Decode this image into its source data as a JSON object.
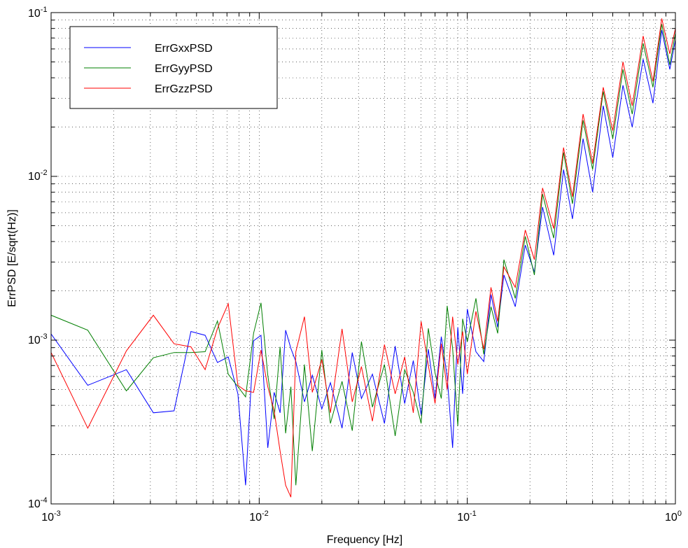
{
  "chart_data": {
    "type": "line",
    "title": "",
    "xlabel": "Frequency [Hz]",
    "ylabel": "ErrPSD [E/sqrt(Hz)]",
    "xscale": "log",
    "yscale": "log",
    "xlim": [
      0.001,
      1
    ],
    "ylim": [
      0.0001,
      0.1
    ],
    "grid": true,
    "legend_position": "top-left",
    "x_ticks": [
      {
        "base": "10",
        "exp": "-3",
        "value": 0.001
      },
      {
        "base": "10",
        "exp": "-2",
        "value": 0.01
      },
      {
        "base": "10",
        "exp": "-1",
        "value": 0.1
      },
      {
        "base": "10",
        "exp": "0",
        "value": 1
      }
    ],
    "y_ticks": [
      {
        "base": "10",
        "exp": "-4",
        "value": 0.0001
      },
      {
        "base": "10",
        "exp": "-3",
        "value": 0.001
      },
      {
        "base": "10",
        "exp": "-2",
        "value": 0.01
      },
      {
        "base": "10",
        "exp": "-1",
        "value": 0.1
      }
    ],
    "series": [
      {
        "name": "ErrGxxPSD",
        "color": "#0000ff",
        "x": [
          0.001,
          0.0015,
          0.0023,
          0.0031,
          0.0039,
          0.0047,
          0.0055,
          0.0063,
          0.0071,
          0.0079,
          0.0086,
          0.0094,
          0.0102,
          0.011,
          0.0118,
          0.0126,
          0.0134,
          0.0142,
          0.015,
          0.0165,
          0.018,
          0.02,
          0.022,
          0.025,
          0.028,
          0.031,
          0.035,
          0.04,
          0.045,
          0.05,
          0.055,
          0.06,
          0.065,
          0.07,
          0.075,
          0.08,
          0.085,
          0.09,
          0.095,
          0.1,
          0.11,
          0.12,
          0.13,
          0.14,
          0.15,
          0.17,
          0.19,
          0.21,
          0.23,
          0.26,
          0.29,
          0.32,
          0.36,
          0.4,
          0.45,
          0.5,
          0.56,
          0.62,
          0.7,
          0.78,
          0.86,
          0.94,
          1.0
        ],
        "y": [
          0.00109,
          0.00053,
          0.00066,
          0.00036,
          0.00037,
          0.00113,
          0.00107,
          0.00073,
          0.00079,
          0.00047,
          0.00013,
          0.00099,
          0.00107,
          0.00022,
          0.00048,
          0.00036,
          0.00115,
          0.00089,
          0.00074,
          0.00042,
          0.00061,
          0.00038,
          0.00055,
          0.00029,
          0.00084,
          0.00044,
          0.00062,
          0.00031,
          0.00092,
          0.00041,
          0.00075,
          0.00035,
          0.00088,
          0.00044,
          0.00105,
          0.0006,
          0.00022,
          0.0012,
          0.00047,
          0.00155,
          0.00085,
          0.00074,
          0.0019,
          0.0012,
          0.0025,
          0.0016,
          0.0038,
          0.0026,
          0.0065,
          0.0033,
          0.011,
          0.0055,
          0.017,
          0.008,
          0.027,
          0.013,
          0.036,
          0.02,
          0.052,
          0.028,
          0.078,
          0.045,
          0.068
        ]
      },
      {
        "name": "ErrGyyPSD",
        "color": "#007f00",
        "x": [
          0.001,
          0.0015,
          0.0023,
          0.0031,
          0.0039,
          0.0047,
          0.0055,
          0.0063,
          0.0071,
          0.0079,
          0.0086,
          0.0094,
          0.0102,
          0.011,
          0.0118,
          0.0126,
          0.0134,
          0.0142,
          0.015,
          0.0165,
          0.018,
          0.02,
          0.022,
          0.025,
          0.028,
          0.031,
          0.035,
          0.04,
          0.045,
          0.05,
          0.055,
          0.06,
          0.065,
          0.07,
          0.075,
          0.08,
          0.085,
          0.09,
          0.095,
          0.1,
          0.11,
          0.12,
          0.13,
          0.14,
          0.15,
          0.17,
          0.19,
          0.21,
          0.23,
          0.26,
          0.29,
          0.32,
          0.36,
          0.4,
          0.45,
          0.5,
          0.56,
          0.62,
          0.7,
          0.78,
          0.86,
          0.94,
          1.0
        ],
        "y": [
          0.00142,
          0.00115,
          0.00049,
          0.00078,
          0.00084,
          0.00084,
          0.00085,
          0.00131,
          0.00062,
          0.00052,
          0.00045,
          0.0011,
          0.00169,
          0.00061,
          0.00033,
          0.00091,
          0.00027,
          0.00052,
          0.00013,
          0.00071,
          0.00021,
          0.00087,
          0.00031,
          0.00056,
          0.00028,
          0.00098,
          0.00039,
          0.00071,
          0.00026,
          0.00066,
          0.00048,
          0.00031,
          0.00118,
          0.00063,
          0.00044,
          0.00162,
          0.00089,
          0.0003,
          0.00135,
          0.00098,
          0.0018,
          0.00082,
          0.0016,
          0.0011,
          0.0031,
          0.0018,
          0.0043,
          0.0025,
          0.0078,
          0.0042,
          0.014,
          0.0068,
          0.022,
          0.011,
          0.033,
          0.017,
          0.045,
          0.024,
          0.065,
          0.035,
          0.085,
          0.048,
          0.075
        ]
      },
      {
        "name": "ErrGzzPSD",
        "color": "#ff0000",
        "x": [
          0.001,
          0.0015,
          0.0023,
          0.0031,
          0.0039,
          0.0047,
          0.0055,
          0.0063,
          0.0071,
          0.0079,
          0.0086,
          0.0094,
          0.0102,
          0.011,
          0.0118,
          0.0126,
          0.0134,
          0.0142,
          0.015,
          0.0165,
          0.018,
          0.02,
          0.022,
          0.025,
          0.028,
          0.031,
          0.035,
          0.04,
          0.045,
          0.05,
          0.055,
          0.06,
          0.065,
          0.07,
          0.075,
          0.08,
          0.085,
          0.09,
          0.095,
          0.1,
          0.11,
          0.12,
          0.13,
          0.14,
          0.15,
          0.17,
          0.19,
          0.21,
          0.23,
          0.26,
          0.29,
          0.32,
          0.36,
          0.4,
          0.45,
          0.5,
          0.56,
          0.62,
          0.7,
          0.78,
          0.86,
          0.94,
          1.0
        ],
        "y": [
          0.00084,
          0.00029,
          0.00086,
          0.00142,
          0.00095,
          0.00091,
          0.00066,
          0.00118,
          0.00167,
          0.00053,
          0.00049,
          0.00048,
          0.00087,
          0.00052,
          0.00037,
          0.00021,
          0.00013,
          0.00011,
          0.00085,
          0.00139,
          0.00048,
          0.00076,
          0.00036,
          0.00117,
          0.00042,
          0.00069,
          0.00032,
          0.00094,
          0.00047,
          0.00079,
          0.00036,
          0.0013,
          0.0007,
          0.00041,
          0.00095,
          0.0005,
          0.00139,
          0.00071,
          0.00113,
          0.00062,
          0.0015,
          0.00088,
          0.0021,
          0.0013,
          0.0028,
          0.0021,
          0.0047,
          0.0031,
          0.0085,
          0.0048,
          0.015,
          0.0075,
          0.024,
          0.012,
          0.035,
          0.019,
          0.05,
          0.027,
          0.072,
          0.038,
          0.092,
          0.056,
          0.08
        ]
      }
    ]
  }
}
